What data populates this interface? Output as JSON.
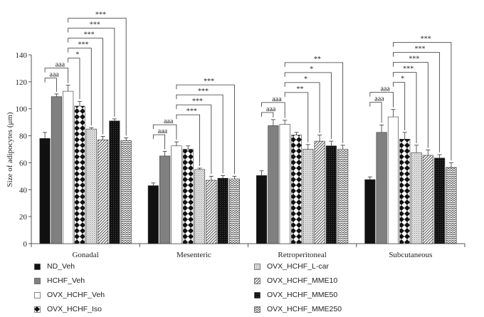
{
  "chart_data": {
    "type": "bar",
    "title": "",
    "xlabel": "",
    "ylabel": "Size of adipocytes (μm)",
    "ylim": [
      0,
      140
    ],
    "yticks": [
      0,
      20,
      40,
      60,
      80,
      100,
      120,
      140
    ],
    "categories": [
      "Gonadal",
      "Mesenteric",
      "Retroperitoneal",
      "Subcutaneous"
    ],
    "series": [
      {
        "name": "ND_Veh",
        "pattern": "solid-black",
        "values": [
          78,
          43,
          50.5,
          47.5
        ],
        "errors": [
          4.5,
          2,
          3.5,
          2
        ]
      },
      {
        "name": "HCHF_Veh",
        "pattern": "solid-gray",
        "values": [
          109,
          65,
          87.5,
          82.5
        ],
        "errors": [
          2,
          3.5,
          4.5,
          5.5
        ]
      },
      {
        "name": "OVX_HCHF_Veh",
        "pattern": "white",
        "values": [
          113,
          72.5,
          88.5,
          94
        ],
        "errors": [
          4.5,
          3,
          3,
          5.5
        ]
      },
      {
        "name": "OVX_HCHF_Iso",
        "pattern": "checker",
        "values": [
          102,
          70,
          80.5,
          77.5
        ],
        "errors": [
          3.5,
          2.5,
          2,
          5
        ]
      },
      {
        "name": "OVX_HCHF_L-car",
        "pattern": "dots",
        "values": [
          85,
          55,
          70,
          67.5
        ],
        "errors": [
          1,
          1,
          3.5,
          5.5
        ]
      },
      {
        "name": "OVX_HCHF_MME10",
        "pattern": "diagonal",
        "values": [
          77,
          47,
          76,
          65.5
        ],
        "errors": [
          2.5,
          3,
          4.5,
          4
        ]
      },
      {
        "name": "OVX_HCHF_MME50",
        "pattern": "dark-dots",
        "values": [
          91,
          48.5,
          72.5,
          63.5
        ],
        "errors": [
          1.5,
          2,
          3.5,
          2.5
        ]
      },
      {
        "name": "OVX_HCHF_MME250",
        "pattern": "zigzag",
        "values": [
          76.5,
          48,
          70,
          56.5
        ],
        "errors": [
          2,
          2,
          3,
          3.5
        ]
      }
    ],
    "annotations": [
      {
        "group": "Gonadal",
        "from": "ND_Veh",
        "to": "HCHF_Veh",
        "label": "aaa"
      },
      {
        "group": "Gonadal",
        "from": "ND_Veh",
        "to": "OVX_HCHF_Veh",
        "label": "aaa"
      },
      {
        "group": "Gonadal",
        "from": "OVX_HCHF_Veh",
        "to": "OVX_HCHF_Iso",
        "label": "*"
      },
      {
        "group": "Gonadal",
        "from": "OVX_HCHF_Veh",
        "to": "OVX_HCHF_L-car",
        "label": "***"
      },
      {
        "group": "Gonadal",
        "from": "OVX_HCHF_Veh",
        "to": "OVX_HCHF_MME10",
        "label": "***"
      },
      {
        "group": "Gonadal",
        "from": "OVX_HCHF_Veh",
        "to": "OVX_HCHF_MME50",
        "label": "***"
      },
      {
        "group": "Gonadal",
        "from": "OVX_HCHF_Veh",
        "to": "OVX_HCHF_MME250",
        "label": "***"
      },
      {
        "group": "Mesenteric",
        "from": "ND_Veh",
        "to": "HCHF_Veh",
        "label": "aaa"
      },
      {
        "group": "Mesenteric",
        "from": "ND_Veh",
        "to": "OVX_HCHF_Veh",
        "label": "aaa"
      },
      {
        "group": "Mesenteric",
        "from": "OVX_HCHF_Veh",
        "to": "OVX_HCHF_L-car",
        "label": "***"
      },
      {
        "group": "Mesenteric",
        "from": "OVX_HCHF_Veh",
        "to": "OVX_HCHF_MME10",
        "label": "***"
      },
      {
        "group": "Mesenteric",
        "from": "OVX_HCHF_Veh",
        "to": "OVX_HCHF_MME50",
        "label": "***"
      },
      {
        "group": "Mesenteric",
        "from": "OVX_HCHF_Veh",
        "to": "OVX_HCHF_MME250",
        "label": "***"
      },
      {
        "group": "Retroperitoneal",
        "from": "ND_Veh",
        "to": "HCHF_Veh",
        "label": "aaa"
      },
      {
        "group": "Retroperitoneal",
        "from": "ND_Veh",
        "to": "OVX_HCHF_Veh",
        "label": "aaa"
      },
      {
        "group": "Retroperitoneal",
        "from": "OVX_HCHF_Veh",
        "to": "OVX_HCHF_L-car",
        "label": "**"
      },
      {
        "group": "Retroperitoneal",
        "from": "OVX_HCHF_Veh",
        "to": "OVX_HCHF_MME10",
        "label": "*"
      },
      {
        "group": "Retroperitoneal",
        "from": "OVX_HCHF_Veh",
        "to": "OVX_HCHF_MME50",
        "label": "*"
      },
      {
        "group": "Retroperitoneal",
        "from": "OVX_HCHF_Veh",
        "to": "OVX_HCHF_MME250",
        "label": "**"
      },
      {
        "group": "Subcutaneous",
        "from": "ND_Veh",
        "to": "HCHF_Veh",
        "label": "aaa"
      },
      {
        "group": "Subcutaneous",
        "from": "ND_Veh",
        "to": "OVX_HCHF_Veh",
        "label": "aaa"
      },
      {
        "group": "Subcutaneous",
        "from": "OVX_HCHF_Veh",
        "to": "OVX_HCHF_Iso",
        "label": "*"
      },
      {
        "group": "Subcutaneous",
        "from": "OVX_HCHF_Veh",
        "to": "OVX_HCHF_L-car",
        "label": "***"
      },
      {
        "group": "Subcutaneous",
        "from": "OVX_HCHF_Veh",
        "to": "OVX_HCHF_MME10",
        "label": "***"
      },
      {
        "group": "Subcutaneous",
        "from": "OVX_HCHF_Veh",
        "to": "OVX_HCHF_MME50",
        "label": "***"
      },
      {
        "group": "Subcutaneous",
        "from": "OVX_HCHF_Veh",
        "to": "OVX_HCHF_MME250",
        "label": "***"
      }
    ],
    "grid": false,
    "legend_position": "bottom"
  }
}
